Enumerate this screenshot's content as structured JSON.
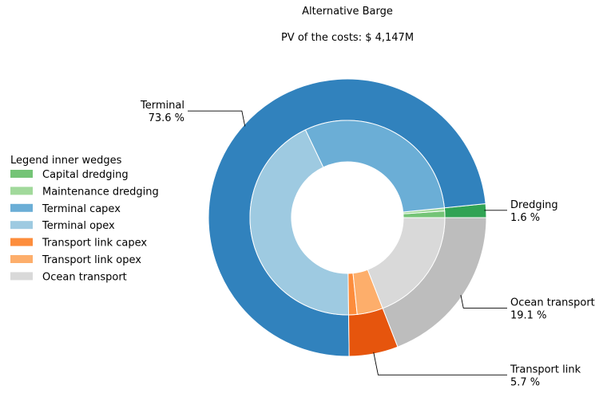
{
  "chart_data": {
    "type": "pie",
    "title": "Alternative Barge",
    "subtitle": "PV of the costs: $ 4,147M",
    "legend": {
      "title": "Legend inner wedges",
      "placement": "center-left"
    },
    "outer_series": [
      {
        "name": "Dredging",
        "percent": 1.6,
        "label": "1.6 %",
        "color": "#31a354"
      },
      {
        "name": "Terminal",
        "percent": 73.6,
        "label": "73.6 %",
        "color": "#3182bd"
      },
      {
        "name": "Transport link",
        "percent": 5.7,
        "label": "5.7 %",
        "color": "#e6550d"
      },
      {
        "name": "Ocean transport",
        "percent": 19.1,
        "label": "19.1 %",
        "color": "#bdbdbd"
      }
    ],
    "inner_series": [
      {
        "name": "Capital dredging",
        "percent": 1.1,
        "color": "#74c476"
      },
      {
        "name": "Maintenance dredging",
        "percent": 0.5,
        "color": "#a1d99b"
      },
      {
        "name": "Terminal capex",
        "percent": 30.5,
        "color": "#6baed6"
      },
      {
        "name": "Terminal opex",
        "percent": 43.1,
        "color": "#9ecae1"
      },
      {
        "name": "Transport link capex",
        "percent": 1.4,
        "color": "#fd8d3c"
      },
      {
        "name": "Transport link opex",
        "percent": 4.3,
        "color": "#fdae6b"
      },
      {
        "name": "Ocean transport",
        "percent": 19.1,
        "color": "#d9d9d9"
      }
    ]
  }
}
